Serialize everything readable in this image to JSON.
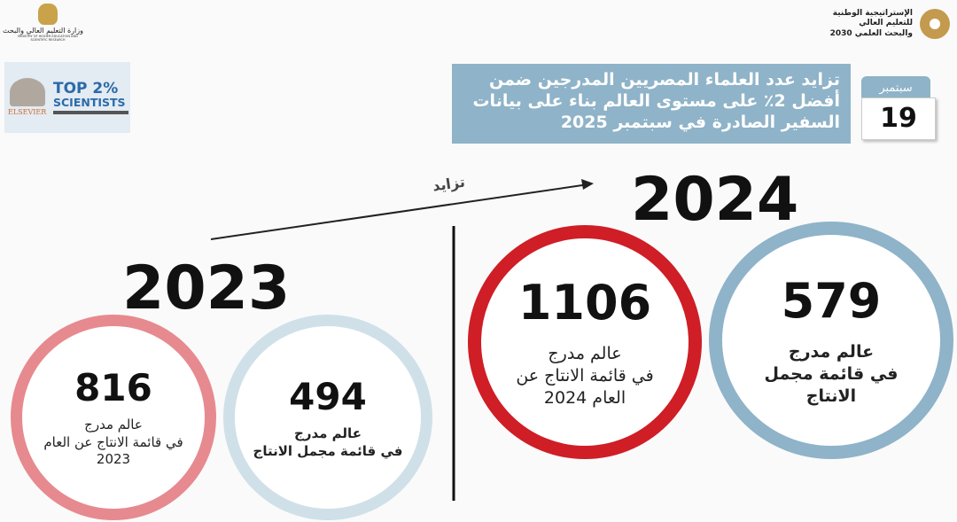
{
  "header": {
    "ministry_name_ar": "وزارة التعليم العالي والبحث العلمي",
    "ministry_name_en": "MINISTRY OF HIGHER EDUCATION AND SCIENTIFIC RESEARCH",
    "strategy_title": [
      "الإستراتيجية الوطنية",
      "للتعليم العالي",
      "والبحث العلمي 2030"
    ],
    "badge": {
      "line1": "TOP 2%",
      "line2": "SCIENTISTS",
      "publisher": "ELSEVIER"
    }
  },
  "title_box": {
    "text": "تزايد عدد العلماء المصريين المدرجين ضمن أفضل 2٪ على مستوى العالم بناء على بيانات السفير الصادرة في سبتمبر 2025",
    "color": "#8fb3c8"
  },
  "calendar": {
    "month": "سبتمبر",
    "day": "19"
  },
  "arrow_label": "تزايد",
  "year_2023": {
    "year": "2023",
    "annual": {
      "value": "816",
      "label": [
        "عالم مدرج",
        "في قائمة الانتاج عن العام",
        "2023"
      ],
      "color": "#e68a8f"
    },
    "total": {
      "value": "494",
      "label": [
        "عالم مدرج",
        "في قائمة مجمل الانتاج"
      ],
      "color": "#cfe0e8"
    }
  },
  "year_2024": {
    "year": "2024",
    "annual": {
      "value": "1106",
      "label": [
        "عالم مدرج",
        "في قائمة الانتاج عن",
        "العام 2024"
      ],
      "color": "#cf1e26"
    },
    "total": {
      "value": "579",
      "label": [
        "عالم مدرج",
        "في قائمة مجمل",
        "الانتاج"
      ],
      "color": "#8fb3c8"
    }
  }
}
